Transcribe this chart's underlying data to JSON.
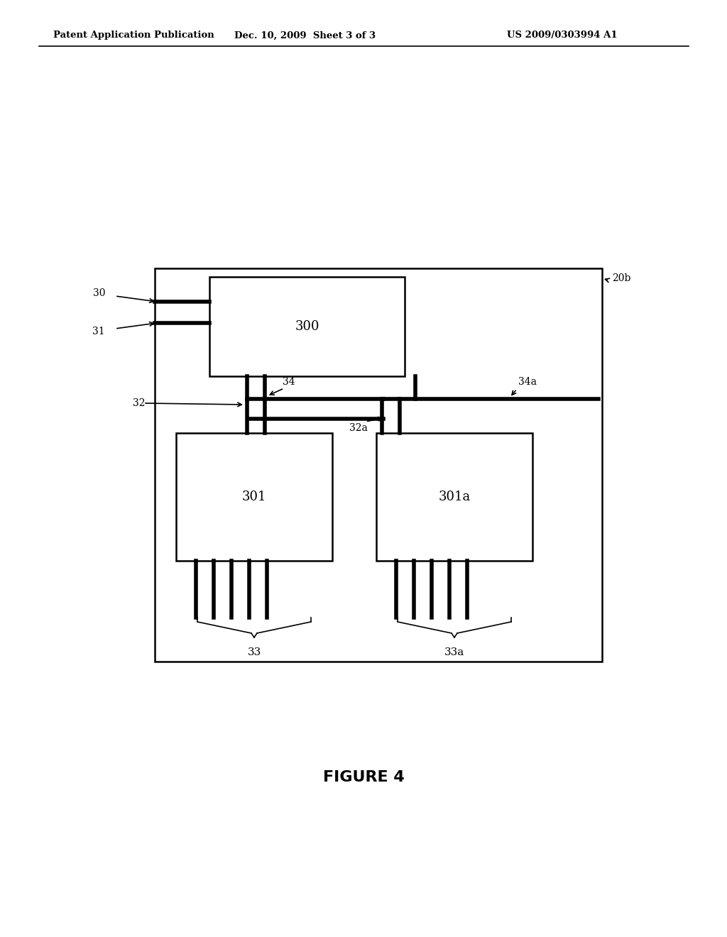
{
  "bg_color": "#ffffff",
  "line_color": "#000000",
  "thick_lw": 4.0,
  "medium_lw": 1.8,
  "thin_lw": 1.2,
  "header_left": "Patent Application Publication",
  "header_mid": "Dec. 10, 2009  Sheet 3 of 3",
  "header_right": "US 2009/0303994 A1",
  "figure_caption": "FIGURE 4",
  "label_20b": "20b",
  "label_30": "30",
  "label_31": "31",
  "label_32": "32",
  "label_32a": "32a",
  "label_33": "33",
  "label_33a": "33a",
  "label_34": "34",
  "label_34a": "34a",
  "label_300": "300",
  "label_301": "301",
  "label_301a": "301a"
}
